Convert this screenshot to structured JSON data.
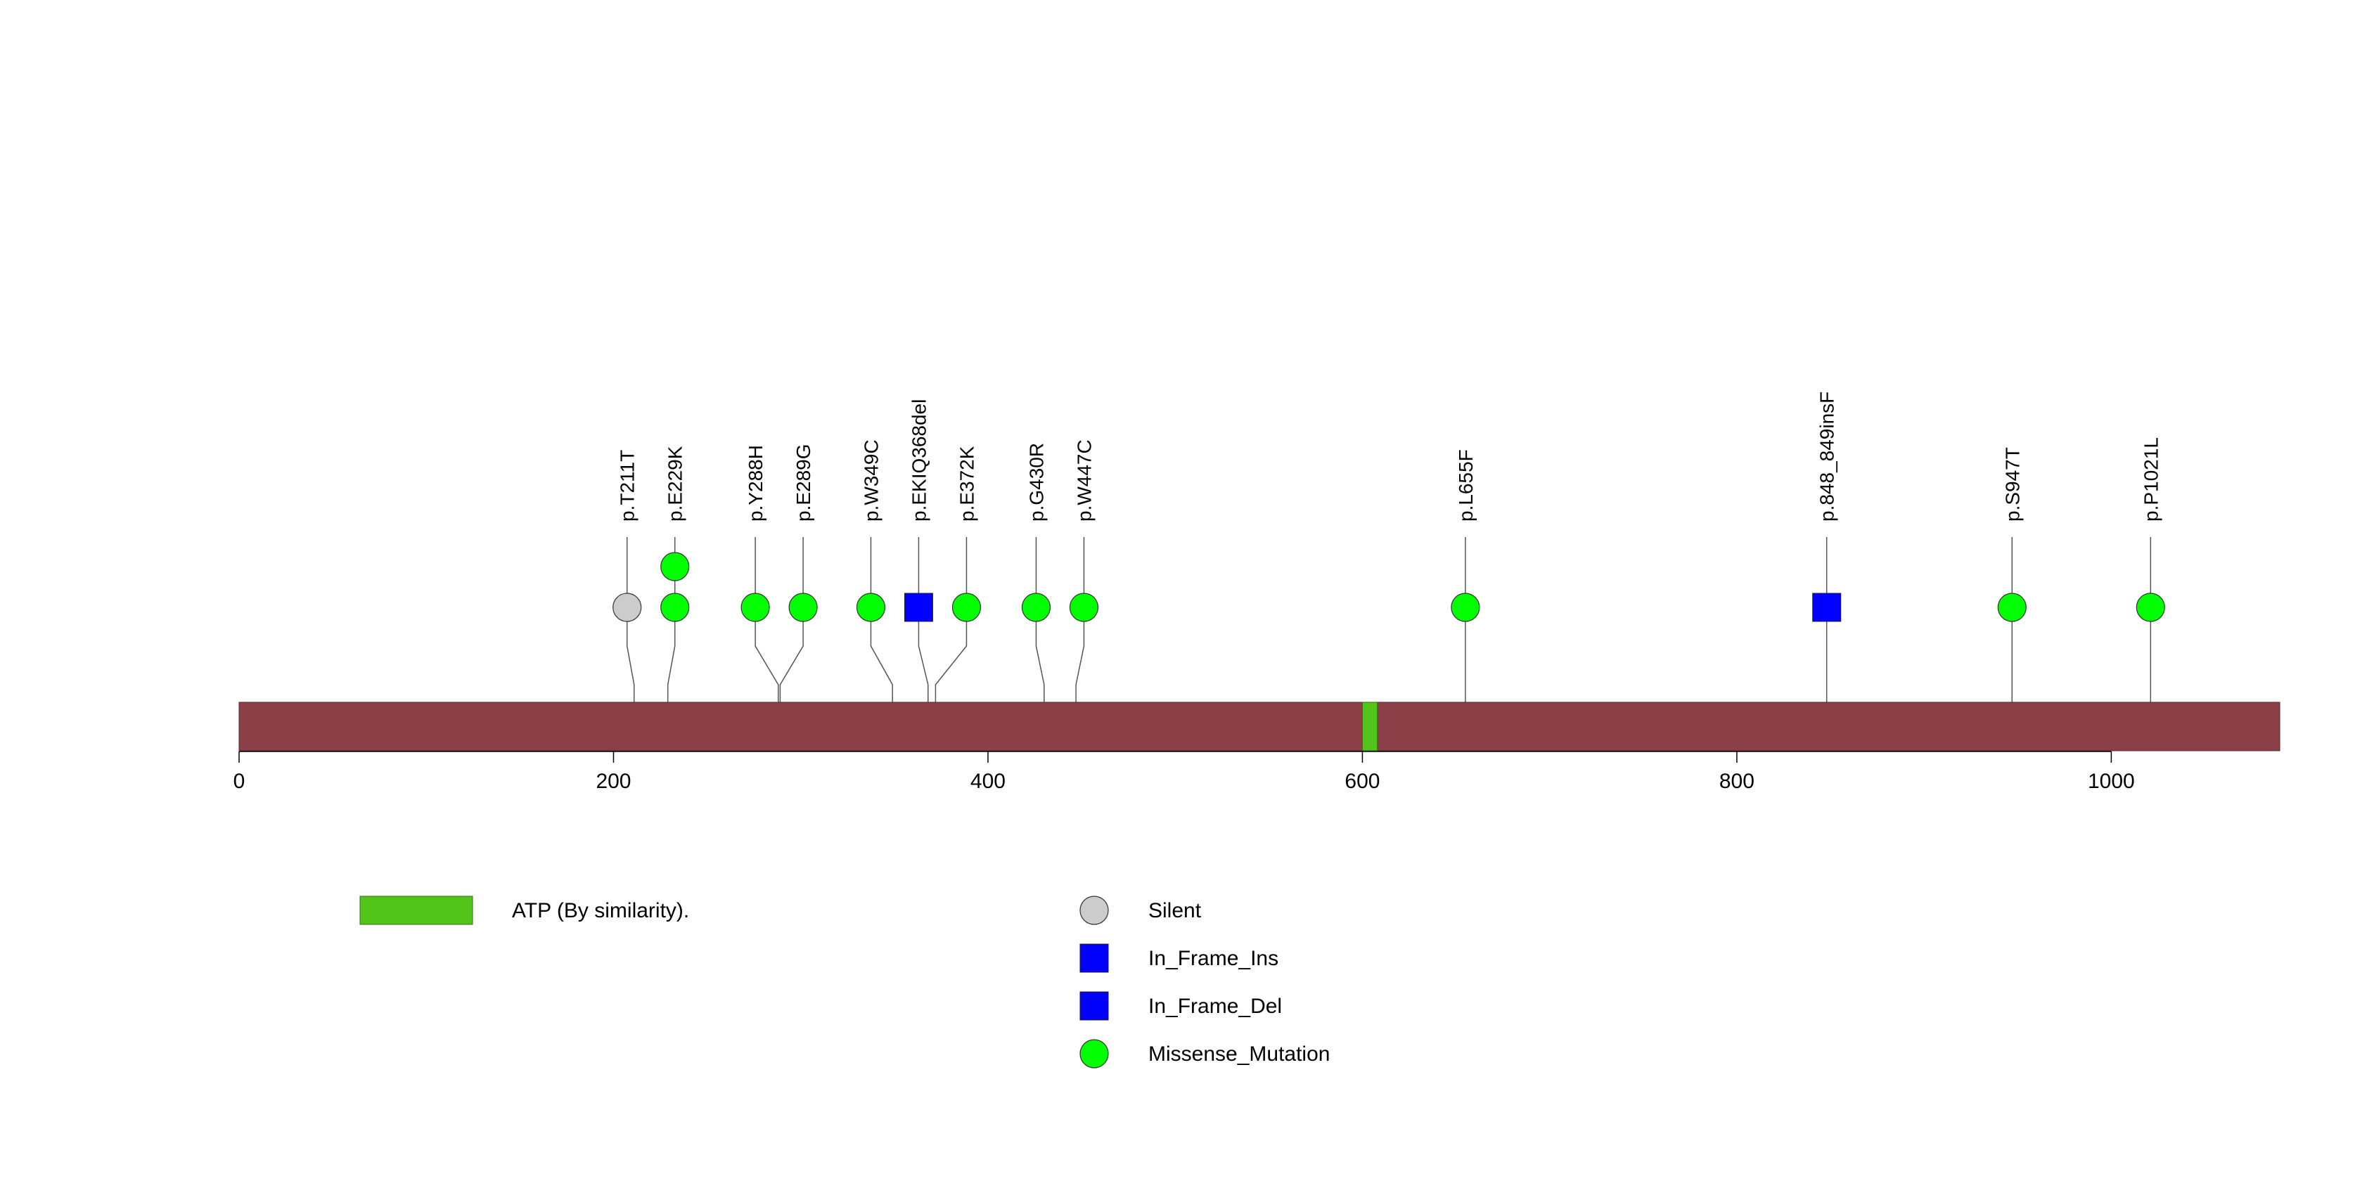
{
  "chart_data": {
    "type": "lollipop",
    "protein_length": 1090,
    "xlim": [
      0,
      1090
    ],
    "xticks": [
      0,
      200,
      400,
      600,
      800,
      1000
    ],
    "xtick_labels": [
      "0",
      "200",
      "400",
      "600",
      "800",
      "1000"
    ],
    "colors": {
      "protein": "#8B3F46",
      "domain": "#52C41A",
      "Silent": "#CCCCCC",
      "In_Frame_Ins": "#0000FF",
      "In_Frame_Del": "#0000FF",
      "Missense_Mutation": "#00FF00"
    },
    "domains": [
      {
        "name": "ATP (By similarity).",
        "start": 600,
        "end": 608
      }
    ],
    "mutations": [
      {
        "label": "p.T211T",
        "position": 211,
        "type": "Silent",
        "count": 1
      },
      {
        "label": "p.E229K",
        "position": 229,
        "type": "Missense_Mutation",
        "count": 2
      },
      {
        "label": "p.Y288H",
        "position": 288,
        "type": "Missense_Mutation",
        "count": 1
      },
      {
        "label": "p.E289G",
        "position": 289,
        "type": "Missense_Mutation",
        "count": 1
      },
      {
        "label": "p.W349C",
        "position": 349,
        "type": "Missense_Mutation",
        "count": 1
      },
      {
        "label": "p.EKIQ368del",
        "position": 368,
        "type": "In_Frame_Del",
        "count": 1
      },
      {
        "label": "p.E372K",
        "position": 372,
        "type": "Missense_Mutation",
        "count": 1
      },
      {
        "label": "p.G430R",
        "position": 430,
        "type": "Missense_Mutation",
        "count": 1
      },
      {
        "label": "p.W447C",
        "position": 447,
        "type": "Missense_Mutation",
        "count": 1
      },
      {
        "label": "p.L655F",
        "position": 655,
        "type": "Missense_Mutation",
        "count": 1
      },
      {
        "label": "p.848_849insF",
        "position": 848,
        "type": "In_Frame_Ins",
        "count": 1
      },
      {
        "label": "p.S947T",
        "position": 947,
        "type": "Missense_Mutation",
        "count": 1
      },
      {
        "label": "p.P1021L",
        "position": 1021,
        "type": "Missense_Mutation",
        "count": 1
      }
    ],
    "legend_domains": [
      {
        "label": "ATP (By similarity).",
        "color": "#52C41A"
      }
    ],
    "legend_types": [
      {
        "label": "Silent",
        "shape": "circle",
        "color": "#CCCCCC"
      },
      {
        "label": "In_Frame_Ins",
        "shape": "square",
        "color": "#0000FF"
      },
      {
        "label": "In_Frame_Del",
        "shape": "square",
        "color": "#0000FF"
      },
      {
        "label": "Missense_Mutation",
        "shape": "circle",
        "color": "#00FF00"
      }
    ]
  }
}
